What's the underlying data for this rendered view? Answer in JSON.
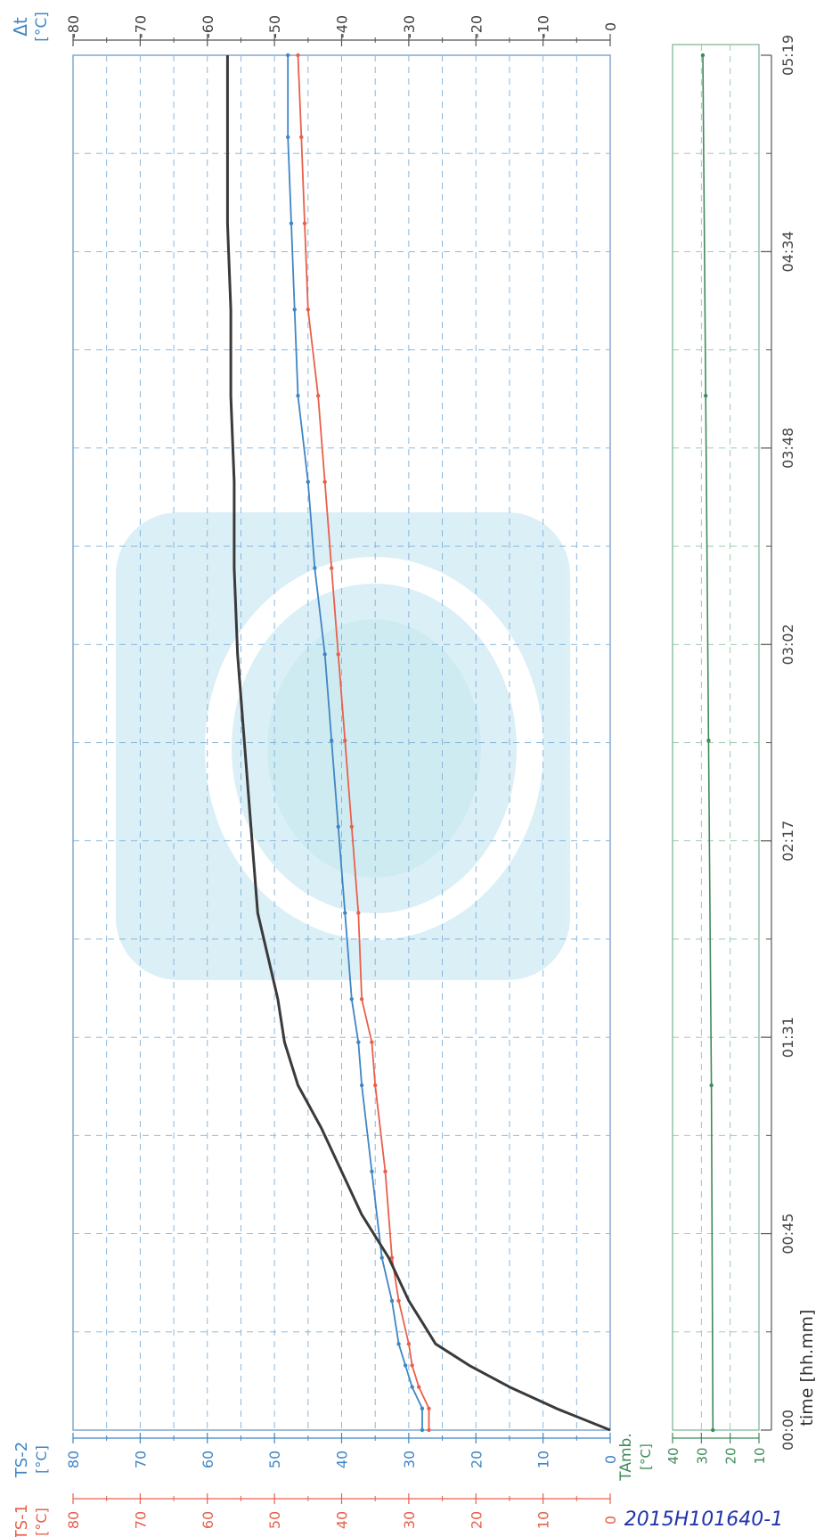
{
  "colors": {
    "ts1": "#e8604c",
    "ts2": "#3f86c4",
    "delta": "#3a3a3a",
    "tamb": "#3f8a5a",
    "grid": "#7fb0d8",
    "frame": "#6d9cc6",
    "watermark": "#bfe3f0"
  },
  "axes": {
    "delta": {
      "name": "Δt",
      "unit": "[°C]",
      "ticks": [
        "-80",
        "-70",
        "-60",
        "-50",
        "-40",
        "-30",
        "-20",
        "-10",
        "0"
      ]
    },
    "ts2": {
      "name": "TS-2",
      "unit": "[°C]",
      "ticks": [
        "80",
        "70",
        "60",
        "50",
        "40",
        "30",
        "20",
        "10",
        "0"
      ]
    },
    "ts1": {
      "name": "TS-1",
      "unit": "[°C]",
      "ticks": [
        "80",
        "70",
        "60",
        "50",
        "40",
        "30",
        "20",
        "10",
        "0"
      ]
    },
    "tamb": {
      "name": "TAmb.",
      "unit": "[°C]",
      "ticks": [
        "40",
        "30",
        "20",
        "10"
      ]
    },
    "time": {
      "label": "time [hh.mm]",
      "ticks": [
        "00:00",
        "00:45",
        "01:31",
        "02:17",
        "03:02",
        "03:48",
        "04:34",
        "05:19"
      ]
    }
  },
  "annotation": {
    "handwritten_id": "2015H101640-1"
  },
  "chart_data": {
    "type": "line",
    "xlabel": "time [hh.mm]",
    "x_tick_labels": [
      "00:00",
      "00:45",
      "01:31",
      "02:17",
      "03:02",
      "03:48",
      "04:34",
      "05:19"
    ],
    "xlim": [
      0,
      319
    ],
    "grid": true,
    "legend": "none",
    "note": "",
    "series": [
      {
        "name": "TS-1",
        "unit": "[°C]",
        "ylim": [
          0,
          80
        ],
        "x": [
          0,
          5,
          10,
          15,
          20,
          30,
          40,
          60,
          80,
          90,
          100,
          120,
          140,
          160,
          180,
          200,
          220,
          240,
          260,
          280,
          300,
          319
        ],
        "y": [
          27,
          27,
          28.5,
          29.5,
          30,
          31.5,
          32.5,
          33.5,
          35,
          35.5,
          37,
          37.5,
          38.5,
          39.5,
          40.5,
          41.5,
          42.5,
          43.5,
          45,
          45.5,
          46,
          46.5
        ]
      },
      {
        "name": "TS-2",
        "unit": "[°C]",
        "ylim": [
          0,
          80
        ],
        "x": [
          0,
          5,
          10,
          15,
          20,
          30,
          40,
          60,
          80,
          90,
          100,
          120,
          140,
          160,
          180,
          200,
          220,
          240,
          260,
          280,
          300,
          319
        ],
        "y": [
          28,
          28,
          29.5,
          30.5,
          31.5,
          32.5,
          34,
          35.5,
          37,
          37.5,
          38.5,
          39.5,
          40.5,
          41.5,
          42.5,
          44,
          45,
          46.5,
          47,
          47.5,
          48,
          48
        ]
      },
      {
        "name": "Δt",
        "unit": "[°C]",
        "ylim": [
          -80,
          0
        ],
        "x": [
          0,
          5,
          10,
          15,
          20,
          25,
          30,
          40,
          50,
          60,
          70,
          80,
          90,
          100,
          110,
          120,
          140,
          160,
          180,
          200,
          220,
          240,
          260,
          280,
          300,
          319
        ],
        "y": [
          0,
          -8,
          -15,
          -21,
          -26,
          -28,
          -30,
          -33,
          -37,
          -40,
          -43,
          -46.5,
          -48.5,
          -49.5,
          -51,
          -52.5,
          -53.5,
          -54.5,
          -55.5,
          -56,
          -56,
          -56.5,
          -56.5,
          -57,
          -57,
          -57
        ]
      },
      {
        "name": "TAmb.",
        "unit": "[°C]",
        "ylim": [
          10,
          40
        ],
        "x": [
          0,
          80,
          160,
          240,
          319
        ],
        "y": [
          26,
          26.5,
          27.5,
          28.5,
          29.5
        ]
      }
    ]
  }
}
